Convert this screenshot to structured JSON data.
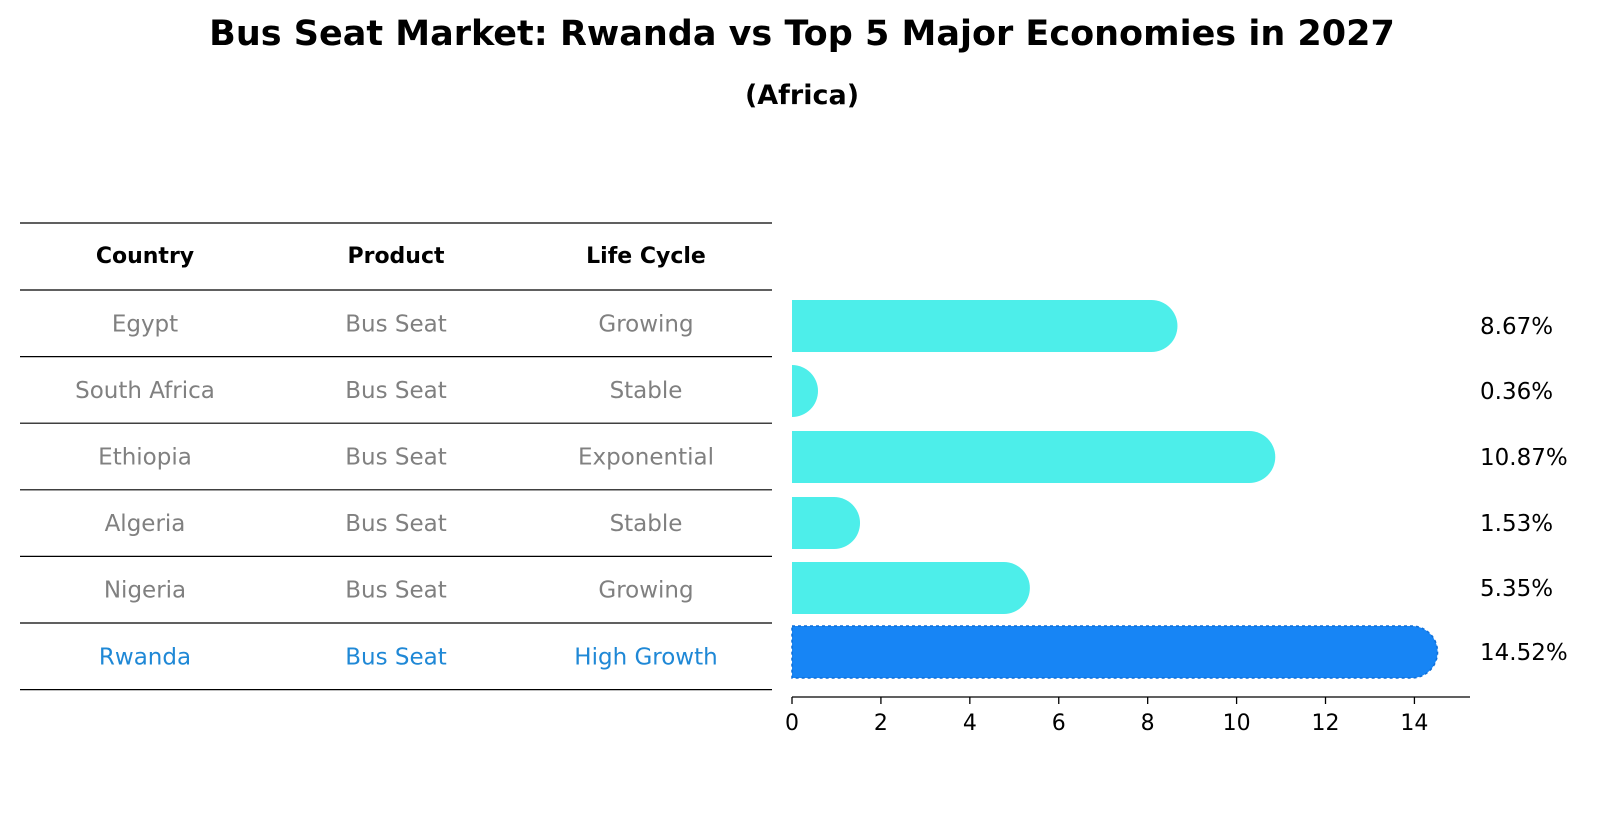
{
  "title": "Bus Seat Market: Rwanda vs Top 5 Major Economies in 2027",
  "subtitle": "(Africa)",
  "table": {
    "headers": [
      "Country",
      "Product",
      "Life Cycle"
    ],
    "rows": [
      {
        "country": "Egypt",
        "product": "Bus Seat",
        "life_cycle": "Growing",
        "highlight": false
      },
      {
        "country": "South Africa",
        "product": "Bus Seat",
        "life_cycle": "Stable",
        "highlight": false
      },
      {
        "country": "Ethiopia",
        "product": "Bus Seat",
        "life_cycle": "Exponential",
        "highlight": false
      },
      {
        "country": "Algeria",
        "product": "Bus Seat",
        "life_cycle": "Stable",
        "highlight": false
      },
      {
        "country": "Nigeria",
        "product": "Bus Seat",
        "life_cycle": "Growing",
        "highlight": false
      },
      {
        "country": "Rwanda",
        "product": "Bus Seat",
        "life_cycle": "High Growth",
        "highlight": true
      }
    ]
  },
  "colors": {
    "bar": "#4deeea",
    "highlight_bar": "#1785f5",
    "highlight_text": "#1f88d6",
    "row_text": "#808080",
    "header_text": "#000000"
  },
  "chart_data": {
    "type": "bar",
    "orientation": "horizontal",
    "categories": [
      "Egypt",
      "South Africa",
      "Ethiopia",
      "Algeria",
      "Nigeria",
      "Rwanda"
    ],
    "values": [
      8.67,
      0.36,
      10.87,
      1.53,
      5.35,
      14.52
    ],
    "value_labels": [
      "8.67%",
      "0.36%",
      "10.87%",
      "1.53%",
      "5.35%",
      "14.52%"
    ],
    "xlim": [
      0,
      15.25
    ],
    "xticks": [
      0,
      2,
      4,
      6,
      8,
      10,
      12,
      14
    ],
    "highlight_index": 5,
    "grid": false,
    "title": "",
    "xlabel": "",
    "ylabel": ""
  }
}
